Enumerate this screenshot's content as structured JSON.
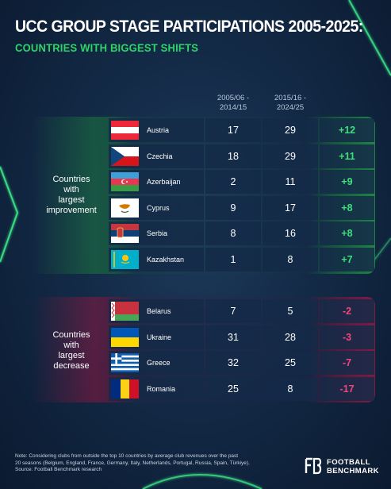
{
  "header": {
    "title": "UCC GROUP STAGE PARTICIPATIONS 2005-2025:",
    "subtitle": "COUNTRIES WITH BIGGEST SHIFTS"
  },
  "columns": {
    "period_a": [
      "2005/06 -",
      "2014/15"
    ],
    "period_b": [
      "2015/16 -",
      "2024/25"
    ]
  },
  "groups": {
    "increase_label": [
      "Countries",
      "with",
      "largest",
      "improvement"
    ],
    "decrease_label": [
      "Countries",
      "with",
      "largest",
      "decrease"
    ]
  },
  "colors": {
    "positive": "#3ee07a",
    "negative": "#f0457a",
    "accent": "#2ed46a"
  },
  "chart_data": {
    "type": "table",
    "title": "UCC GROUP STAGE PARTICIPATIONS 2005-2025:",
    "subtitle": "COUNTRIES WITH BIGGEST SHIFTS",
    "columns": [
      "2005/06 - 2014/15",
      "2015/16 - 2024/25"
    ],
    "improvement": [
      {
        "country": "Austria",
        "flag": "austria-flag",
        "a": 17,
        "b": 29,
        "change": "+12"
      },
      {
        "country": "Czechia",
        "flag": "czechia-flag",
        "a": 18,
        "b": 29,
        "change": "+11"
      },
      {
        "country": "Azerbaijan",
        "flag": "azerbaijan-flag",
        "a": 2,
        "b": 11,
        "change": "+9"
      },
      {
        "country": "Cyprus",
        "flag": "cyprus-flag",
        "a": 9,
        "b": 17,
        "change": "+8"
      },
      {
        "country": "Serbia",
        "flag": "serbia-flag",
        "a": 8,
        "b": 16,
        "change": "+8"
      },
      {
        "country": "Kazakhstan",
        "flag": "kazakhstan-flag",
        "a": 1,
        "b": 8,
        "change": "+7"
      }
    ],
    "decrease": [
      {
        "country": "Belarus",
        "flag": "belarus-flag",
        "a": 7,
        "b": 5,
        "change": "-2"
      },
      {
        "country": "Ukraine",
        "flag": "ukraine-flag",
        "a": 31,
        "b": 28,
        "change": "-3"
      },
      {
        "country": "Greece",
        "flag": "greece-flag",
        "a": 32,
        "b": 25,
        "change": "-7"
      },
      {
        "country": "Romania",
        "flag": "romania-flag",
        "a": 25,
        "b": 8,
        "change": "-17"
      }
    ]
  },
  "footer": {
    "note_lines": [
      "Note: Considering clubs from outside the top 10 countries by average club revenues over the past",
      "20 seasons (Belgium, England, France, Germany, Italy, Netherlands, Portugal, Russia, Spain, Türkiye).",
      "Source: Football Benchmark research"
    ],
    "brand_logo_text": "FB",
    "brand_lines": [
      "FOOTBALL",
      "BENCHMARK"
    ]
  }
}
